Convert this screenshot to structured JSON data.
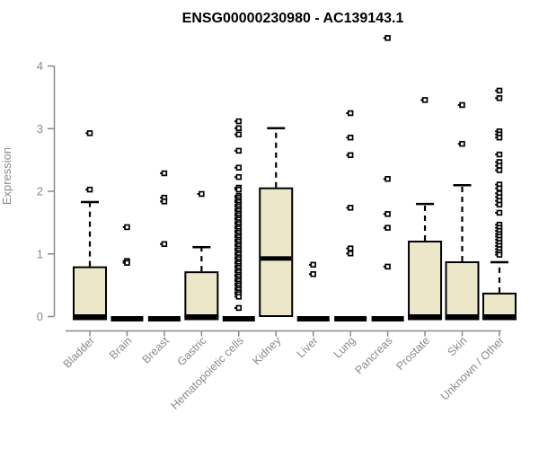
{
  "chart_data": {
    "type": "boxplot",
    "title": "ENSG00000230980 - AC139143.1",
    "ylabel": "Expression",
    "xlabel": "",
    "ylim": [
      0,
      4
    ],
    "yticks": [
      0,
      1,
      2,
      3,
      4
    ],
    "grid": false,
    "legend": "none",
    "colors": {
      "box_fill": "#ece7c9",
      "box_stroke": "#000000",
      "axis": "#8a8a8a",
      "label": "#8a8a8a",
      "title": "#000000",
      "background": "#ffffff"
    },
    "categories": [
      "Bladder",
      "Brain",
      "Breast",
      "Gastric",
      "Hematopoietic cells",
      "Kidney",
      "Liver",
      "Lung",
      "Pancreas",
      "Prostate",
      "Skin",
      "Unknown / Other"
    ],
    "boxes": [
      {
        "category": "Bladder",
        "q1": 0,
        "median": 0,
        "q3": 0.78,
        "whisker_low": 0,
        "whisker_high": 1.82,
        "outliers": [
          2.92,
          2.02
        ]
      },
      {
        "category": "Brain",
        "q1": 0,
        "median": 0,
        "q3": 0,
        "whisker_low": 0,
        "whisker_high": 0,
        "outliers": [
          1.42,
          0.88,
          0.85
        ]
      },
      {
        "category": "Breast",
        "q1": 0,
        "median": 0,
        "q3": 0,
        "whisker_low": 0,
        "whisker_high": 0,
        "outliers": [
          2.28,
          1.89,
          1.83,
          1.15
        ]
      },
      {
        "category": "Gastric",
        "q1": 0,
        "median": 0,
        "q3": 0.7,
        "whisker_low": 0,
        "whisker_high": 1.1,
        "outliers": [
          1.95
        ]
      },
      {
        "category": "Hematopoietic cells",
        "q1": 0,
        "median": 0,
        "q3": 0,
        "whisker_low": 0,
        "whisker_high": 0,
        "outliers": [
          3.11,
          3.0,
          2.9,
          2.64,
          2.37,
          2.22,
          2.05,
          2.02,
          1.92,
          1.89,
          1.85,
          1.82,
          1.78,
          1.75,
          1.71,
          1.68,
          1.64,
          1.61,
          1.57,
          1.54,
          1.5,
          1.47,
          1.43,
          1.4,
          1.36,
          1.33,
          1.29,
          1.26,
          1.22,
          1.19,
          1.15,
          1.12,
          1.08,
          1.05,
          1.01,
          0.98,
          0.94,
          0.91,
          0.87,
          0.84,
          0.8,
          0.77,
          0.73,
          0.7,
          0.66,
          0.63,
          0.59,
          0.56,
          0.52,
          0.49,
          0.45,
          0.42,
          0.38,
          0.35,
          0.31,
          0.13
        ]
      },
      {
        "category": "Kidney",
        "q1": 0,
        "median": 0.92,
        "q3": 2.04,
        "whisker_low": 0,
        "whisker_high": 3.0,
        "outliers": []
      },
      {
        "category": "Liver",
        "q1": 0,
        "median": 0,
        "q3": 0,
        "whisker_low": 0,
        "whisker_high": 0,
        "outliers": [
          0.82,
          0.67
        ]
      },
      {
        "category": "Lung",
        "q1": 0,
        "median": 0,
        "q3": 0,
        "whisker_low": 0,
        "whisker_high": 0,
        "outliers": [
          3.24,
          2.85,
          2.57,
          1.73,
          1.08,
          1.0
        ]
      },
      {
        "category": "Pancreas",
        "q1": 0,
        "median": 0,
        "q3": 0,
        "whisker_low": 0,
        "whisker_high": 0,
        "outliers": [
          4.44,
          2.19,
          1.63,
          1.41,
          0.79
        ]
      },
      {
        "category": "Prostate",
        "q1": 0,
        "median": 0,
        "q3": 1.19,
        "whisker_low": 0,
        "whisker_high": 1.79,
        "outliers": [
          3.45
        ]
      },
      {
        "category": "Skin",
        "q1": 0,
        "median": 0,
        "q3": 0.86,
        "whisker_low": 0,
        "whisker_high": 2.09,
        "outliers": [
          3.37,
          2.75
        ]
      },
      {
        "category": "Unknown / Other",
        "q1": 0,
        "median": 0,
        "q3": 0.36,
        "whisker_low": 0,
        "whisker_high": 0.86,
        "outliers": [
          3.6,
          3.48,
          2.95,
          2.9,
          2.85,
          2.58,
          2.46,
          2.4,
          2.33,
          2.1,
          2.04,
          1.96,
          1.9,
          1.84,
          1.78,
          1.65,
          1.46,
          1.41,
          1.36,
          1.31,
          1.27,
          1.22,
          1.17,
          1.12,
          1.07,
          1.02,
          0.98
        ]
      }
    ]
  }
}
